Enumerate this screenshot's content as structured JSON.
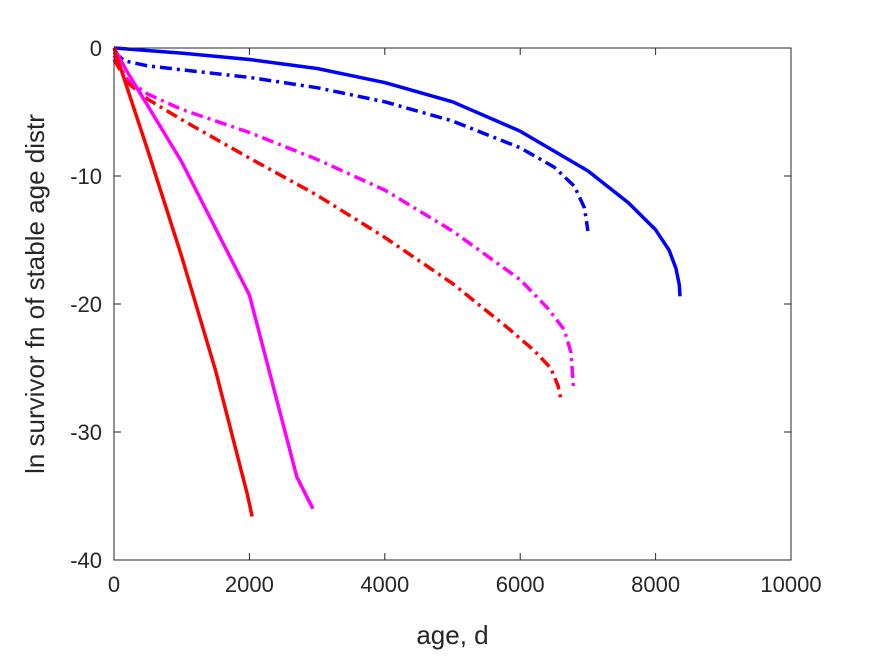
{
  "chart_data": {
    "type": "line",
    "title": "",
    "xlabel": "age, d",
    "ylabel": "ln survivor fn of stable age distr",
    "xlim": [
      0,
      10000
    ],
    "ylim": [
      -40,
      0
    ],
    "xticks": [
      0,
      2000,
      4000,
      6000,
      8000,
      10000
    ],
    "yticks": [
      0,
      -10,
      -20,
      -30,
      -40
    ],
    "xtick_labels": [
      "0",
      "2000",
      "4000",
      "6000",
      "8000",
      "10000"
    ],
    "ytick_labels": [
      "0",
      "-10",
      "-20",
      "-30",
      "-40"
    ],
    "grid": false,
    "legend": "none",
    "series": [
      {
        "color": "#0000ff",
        "style": "solid",
        "points": [
          [
            0,
            0
          ],
          [
            1000,
            -0.4
          ],
          [
            2000,
            -0.9
          ],
          [
            3000,
            -1.6
          ],
          [
            4000,
            -2.7
          ],
          [
            5000,
            -4.2
          ],
          [
            6000,
            -6.5
          ],
          [
            7000,
            -9.6
          ],
          [
            7600,
            -12.1
          ],
          [
            8000,
            -14.2
          ],
          [
            8200,
            -15.8
          ],
          [
            8300,
            -17.2
          ],
          [
            8350,
            -18.5
          ],
          [
            8360,
            -19.4
          ]
        ]
      },
      {
        "color": "#0000ff",
        "style": "dashdot",
        "points": [
          [
            0,
            -0.3
          ],
          [
            150,
            -1.0
          ],
          [
            500,
            -1.4
          ],
          [
            1000,
            -1.7
          ],
          [
            2000,
            -2.3
          ],
          [
            3000,
            -3.1
          ],
          [
            4000,
            -4.2
          ],
          [
            5000,
            -5.7
          ],
          [
            6000,
            -7.8
          ],
          [
            6500,
            -9.3
          ],
          [
            6800,
            -10.8
          ],
          [
            6950,
            -12.5
          ],
          [
            7000,
            -14.3
          ]
        ]
      },
      {
        "color": "#ff00ff",
        "style": "dashdot",
        "points": [
          [
            0,
            -0.6
          ],
          [
            200,
            -2.5
          ],
          [
            500,
            -3.6
          ],
          [
            1000,
            -4.8
          ],
          [
            2000,
            -6.6
          ],
          [
            3000,
            -8.7
          ],
          [
            4000,
            -11.1
          ],
          [
            5000,
            -14.3
          ],
          [
            6000,
            -18.1
          ],
          [
            6400,
            -20.3
          ],
          [
            6650,
            -22.0
          ],
          [
            6750,
            -23.8
          ],
          [
            6780,
            -26.1
          ],
          [
            6790,
            -26.8
          ]
        ]
      },
      {
        "color": "#ff0000",
        "style": "dashdot",
        "points": [
          [
            0,
            -0.9
          ],
          [
            200,
            -2.7
          ],
          [
            500,
            -4.0
          ],
          [
            1000,
            -5.6
          ],
          [
            2000,
            -8.6
          ],
          [
            3000,
            -11.5
          ],
          [
            4000,
            -14.8
          ],
          [
            5000,
            -18.4
          ],
          [
            5800,
            -21.8
          ],
          [
            6200,
            -23.6
          ],
          [
            6450,
            -25.0
          ],
          [
            6560,
            -26.4
          ],
          [
            6600,
            -27.4
          ]
        ]
      },
      {
        "color": "#ff00ff",
        "style": "solid",
        "points": [
          [
            0,
            0
          ],
          [
            200,
            -1.9
          ],
          [
            1000,
            -8.9
          ],
          [
            2000,
            -19.3
          ],
          [
            2700,
            -33.5
          ],
          [
            2870,
            -35.3
          ],
          [
            2940,
            -36.0
          ]
        ]
      },
      {
        "color": "#ff0000",
        "style": "solid",
        "points": [
          [
            0,
            0
          ],
          [
            500,
            -8.0
          ],
          [
            1000,
            -16.3
          ],
          [
            1500,
            -25.2
          ],
          [
            1970,
            -34.9
          ],
          [
            2000,
            -35.6
          ],
          [
            2040,
            -36.6
          ]
        ]
      }
    ]
  }
}
